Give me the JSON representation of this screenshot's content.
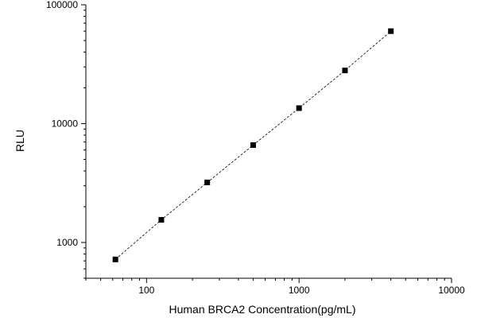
{
  "chart_data": {
    "type": "scatter",
    "title": "",
    "xlabel": "Human BRCA2 Concentration(pg/mL)",
    "ylabel": "RLU",
    "x_scale": "log",
    "y_scale": "log",
    "xlim": [
      40,
      10000
    ],
    "ylim": [
      500,
      100000
    ],
    "x_ticks": [
      100,
      1000,
      10000
    ],
    "x_tick_labels": [
      "100",
      "1000",
      "10000"
    ],
    "y_ticks": [
      1000,
      10000,
      100000
    ],
    "y_tick_labels": [
      "1000",
      "10000",
      "100000"
    ],
    "grid": false,
    "legend": "none",
    "fit_line": "dashed",
    "series": [
      {
        "x": [
          62.5,
          125,
          250,
          500,
          1000,
          2000,
          4000
        ],
        "y": [
          720,
          1550,
          3200,
          6600,
          13500,
          28000,
          60000
        ]
      }
    ],
    "colors": {
      "marker": "#000000",
      "axis": "#000000",
      "fit_line": "#000000"
    }
  }
}
